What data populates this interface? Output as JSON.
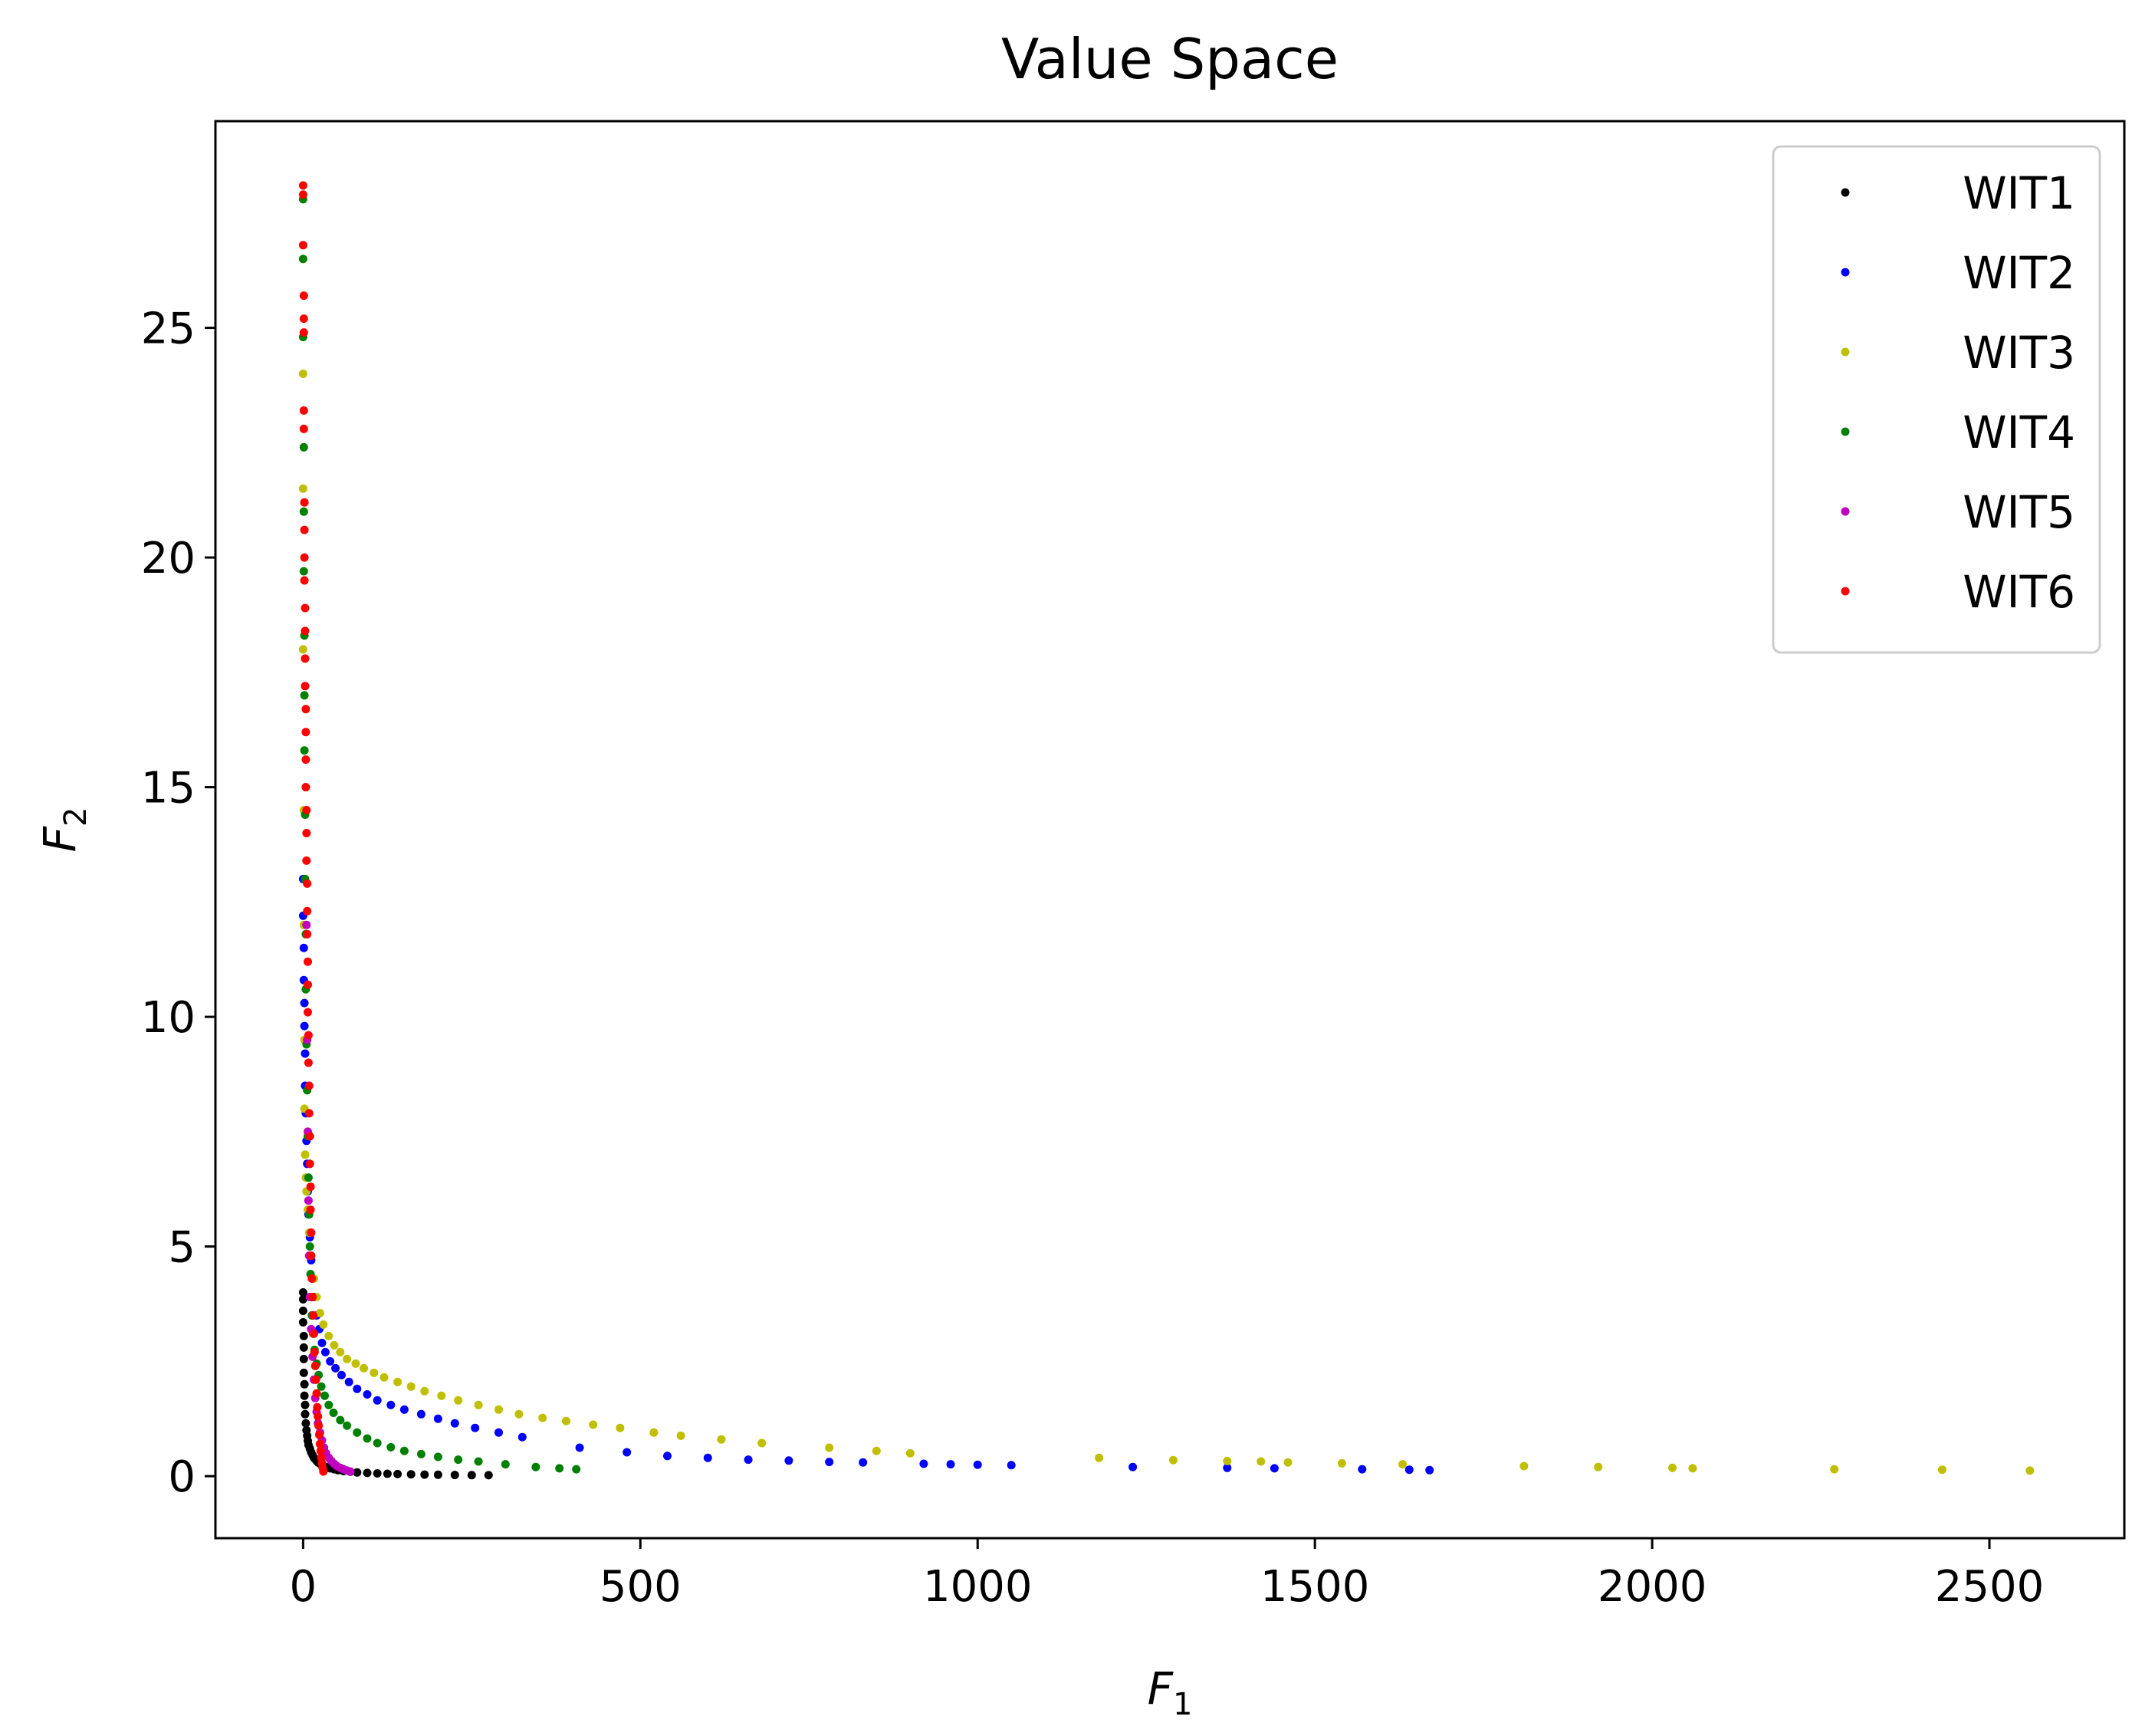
{
  "chart_data": {
    "type": "scatter",
    "title": "Value Space",
    "xlabel": {
      "base": "F",
      "sub": "1"
    },
    "ylabel": {
      "base": "F",
      "sub": "2"
    },
    "xlim": [
      -130,
      2700
    ],
    "ylim": [
      -1.35,
      29.5
    ],
    "xticks": [
      0,
      500,
      1000,
      1500,
      2000,
      2500
    ],
    "yticks": [
      0,
      5,
      10,
      15,
      20,
      25
    ],
    "xtick_labels": [
      "0",
      "500",
      "1000",
      "1500",
      "2000",
      "2500"
    ],
    "ytick_labels": [
      "0",
      "5",
      "10",
      "15",
      "20",
      "25"
    ],
    "grid": false,
    "legend_position": "top-right",
    "series": [
      {
        "name": "WIT1",
        "color": "#000000",
        "x": [
          0,
          0,
          0,
          0,
          1,
          1,
          1,
          1,
          2,
          2,
          3,
          3,
          4,
          5,
          6,
          7,
          8,
          10,
          12,
          14,
          16,
          19,
          22,
          26,
          30,
          35,
          40,
          46,
          52,
          60,
          70,
          80,
          95,
          110,
          125,
          140,
          160,
          180,
          200,
          225,
          250,
          275
        ],
        "y": [
          4.0,
          3.85,
          3.6,
          3.35,
          3.05,
          2.8,
          2.55,
          2.25,
          2.0,
          1.75,
          1.55,
          1.35,
          1.15,
          1.0,
          0.88,
          0.77,
          0.68,
          0.6,
          0.52,
          0.46,
          0.4,
          0.35,
          0.3,
          0.26,
          0.23,
          0.2,
          0.17,
          0.15,
          0.13,
          0.11,
          0.095,
          0.08,
          0.07,
          0.06,
          0.052,
          0.045,
          0.04,
          0.034,
          0.03,
          0.026,
          0.022,
          0.02
        ]
      },
      {
        "name": "WIT2",
        "color": "#0000ff",
        "x": [
          0,
          0,
          1,
          1,
          2,
          2,
          3,
          3,
          4,
          5,
          6,
          7,
          8,
          10,
          12,
          14,
          17,
          20,
          24,
          28,
          33,
          40,
          48,
          57,
          68,
          80,
          95,
          110,
          130,
          150,
          175,
          200,
          225,
          255,
          290,
          325,
          410,
          480,
          540,
          600,
          660,
          720,
          780,
          830,
          920,
          960,
          1000,
          1050,
          1230,
          1370,
          1440,
          1570,
          1640,
          1670
        ],
        "y": [
          13.0,
          12.2,
          11.5,
          10.8,
          10.3,
          9.8,
          9.2,
          8.5,
          7.9,
          7.3,
          6.8,
          6.2,
          5.7,
          5.2,
          4.7,
          4.3,
          3.9,
          3.5,
          3.2,
          2.9,
          2.7,
          2.5,
          2.35,
          2.2,
          2.05,
          1.9,
          1.78,
          1.65,
          1.55,
          1.45,
          1.35,
          1.25,
          1.15,
          1.05,
          0.95,
          0.85,
          0.62,
          0.52,
          0.44,
          0.4,
          0.36,
          0.34,
          0.31,
          0.3,
          0.27,
          0.26,
          0.25,
          0.24,
          0.2,
          0.18,
          0.17,
          0.15,
          0.14,
          0.13
        ]
      },
      {
        "name": "WIT3",
        "color": "#bfbf00",
        "x": [
          0,
          0,
          0,
          1,
          1,
          2,
          2,
          3,
          4,
          5,
          7,
          9,
          12,
          16,
          20,
          25,
          30,
          38,
          46,
          55,
          65,
          78,
          90,
          105,
          120,
          140,
          160,
          180,
          205,
          230,
          260,
          290,
          320,
          355,
          390,
          430,
          470,
          520,
          560,
          620,
          680,
          780,
          850,
          900,
          1180,
          1290,
          1370,
          1420,
          1460,
          1540,
          1630,
          1810,
          1920,
          2030,
          2060,
          2270,
          2430,
          2560
        ],
        "y": [
          24.0,
          21.5,
          18.0,
          14.5,
          12.0,
          9.5,
          8.0,
          7.0,
          6.5,
          6.2,
          5.8,
          5.3,
          4.8,
          4.3,
          3.9,
          3.55,
          3.3,
          3.05,
          2.85,
          2.7,
          2.55,
          2.45,
          2.35,
          2.25,
          2.15,
          2.05,
          1.95,
          1.85,
          1.75,
          1.65,
          1.55,
          1.45,
          1.35,
          1.27,
          1.2,
          1.12,
          1.05,
          0.95,
          0.88,
          0.8,
          0.72,
          0.62,
          0.55,
          0.5,
          0.4,
          0.35,
          0.33,
          0.32,
          0.3,
          0.28,
          0.26,
          0.22,
          0.2,
          0.18,
          0.17,
          0.15,
          0.14,
          0.12
        ]
      },
      {
        "name": "WIT4",
        "color": "#008000",
        "x": [
          0,
          0,
          0,
          1,
          1,
          1,
          2,
          2,
          2,
          3,
          3,
          4,
          4,
          5,
          6,
          7,
          8,
          9,
          10,
          11,
          12,
          13,
          15,
          17,
          20,
          23,
          27,
          32,
          38,
          45,
          55,
          65,
          80,
          95,
          110,
          130,
          150,
          175,
          200,
          230,
          260,
          300,
          345,
          380,
          405
        ],
        "y": [
          27.8,
          26.5,
          24.8,
          22.4,
          21.0,
          19.7,
          18.3,
          17.0,
          15.8,
          14.4,
          13.0,
          11.8,
          10.6,
          9.4,
          8.4,
          7.4,
          6.5,
          5.7,
          5.0,
          4.4,
          3.9,
          3.5,
          3.1,
          2.75,
          2.45,
          2.2,
          1.95,
          1.75,
          1.55,
          1.38,
          1.22,
          1.1,
          0.95,
          0.82,
          0.72,
          0.63,
          0.55,
          0.48,
          0.42,
          0.36,
          0.32,
          0.26,
          0.2,
          0.17,
          0.15
        ]
      },
      {
        "name": "WIT5",
        "color": "#bf00bf",
        "x": [
          4,
          5,
          6,
          7,
          8,
          9,
          10,
          12,
          14,
          16,
          18,
          20,
          22,
          25,
          28,
          31,
          34,
          38,
          42,
          46,
          50,
          55,
          60,
          65,
          70
        ],
        "y": [
          15.0,
          12.0,
          9.5,
          7.5,
          6.0,
          4.8,
          3.9,
          3.2,
          2.6,
          2.1,
          1.7,
          1.4,
          1.15,
          0.95,
          0.78,
          0.62,
          0.5,
          0.4,
          0.33,
          0.27,
          0.22,
          0.18,
          0.15,
          0.12,
          0.1
        ]
      },
      {
        "name": "WIT6",
        "color": "#ff0000",
        "x": [
          0,
          0,
          0,
          1,
          1,
          1,
          1,
          1,
          2,
          2,
          2,
          2,
          3,
          3,
          3,
          3,
          4,
          4,
          4,
          4,
          5,
          5,
          5,
          6,
          6,
          6,
          7,
          7,
          7,
          8,
          8,
          9,
          9,
          10,
          10,
          11,
          11,
          12,
          12,
          13,
          14,
          15,
          16,
          17,
          18,
          19,
          20,
          21,
          22,
          23,
          24,
          25,
          26,
          27,
          28,
          29,
          30
        ],
        "y": [
          28.1,
          27.9,
          26.8,
          25.7,
          25.2,
          24.9,
          23.2,
          22.8,
          21.2,
          20.6,
          20.0,
          19.5,
          18.9,
          18.4,
          17.8,
          17.2,
          16.7,
          16.2,
          15.6,
          15.0,
          14.5,
          14.0,
          13.4,
          12.9,
          12.3,
          11.8,
          11.2,
          10.7,
          10.1,
          9.6,
          9.0,
          8.5,
          7.9,
          7.4,
          6.8,
          6.3,
          5.8,
          5.3,
          4.8,
          4.3,
          3.9,
          3.5,
          3.1,
          2.7,
          2.4,
          2.1,
          1.8,
          1.5,
          1.3,
          1.1,
          0.9,
          0.7,
          0.55,
          0.4,
          0.28,
          0.18,
          0.1
        ]
      }
    ]
  }
}
